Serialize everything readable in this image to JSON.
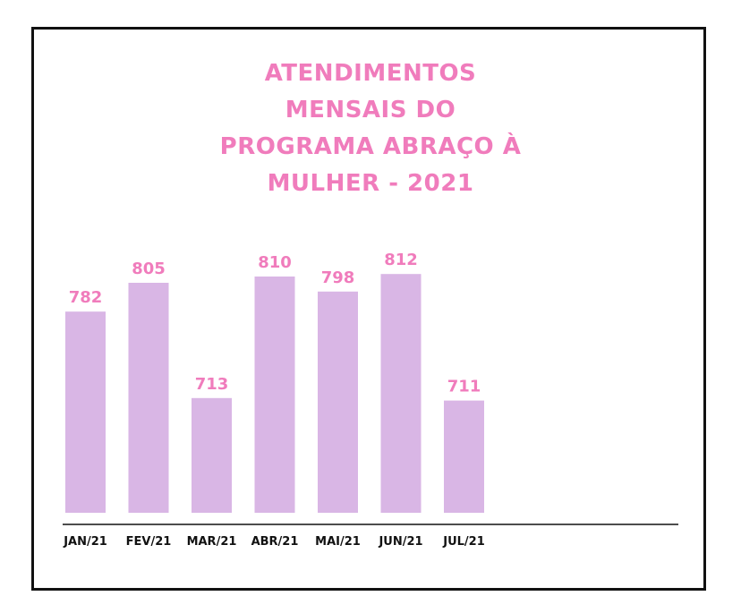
{
  "chart_data": {
    "type": "bar",
    "title_lines": [
      "ATENDIMENTOS",
      "MENSAIS DO",
      "PROGRAMA ABRAÇO À",
      "MULHER - 2021"
    ],
    "categories": [
      "JAN/21",
      "FEV/21",
      "MAR/21",
      "ABR/21",
      "MAI/21",
      "JUN/21",
      "JUL/21"
    ],
    "values": [
      782,
      805,
      713,
      810,
      798,
      812,
      711
    ],
    "xlabel": "",
    "ylabel": "",
    "grid": false,
    "legend": "none"
  },
  "colors": {
    "bar": "#d9b6e5",
    "title": "#f07cbc",
    "value_label": "#f07cbc",
    "axis": "#111111",
    "frame": "#111111"
  }
}
